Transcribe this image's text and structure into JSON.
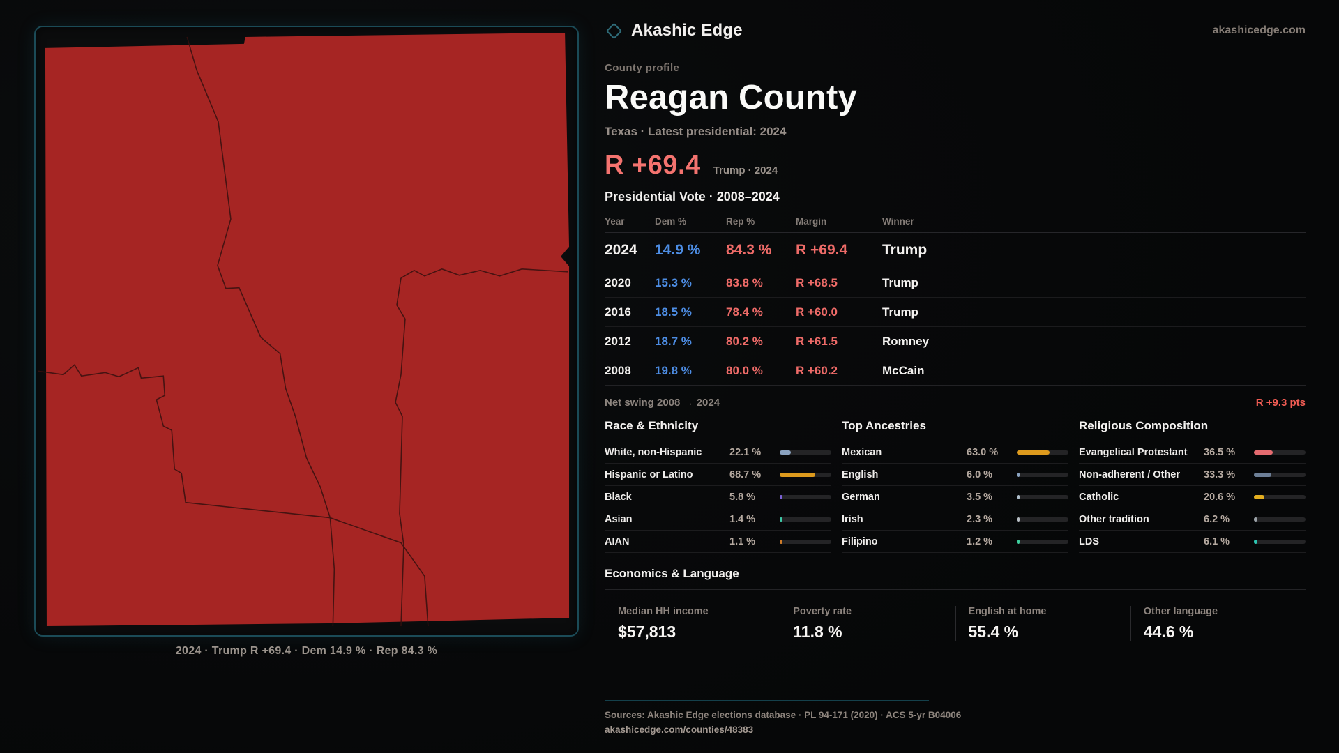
{
  "brand": {
    "name": "Akashic Edge",
    "domain": "akashicedge.com"
  },
  "header": {
    "eyebrow": "County profile",
    "title": "Reagan County",
    "subtitle": "Texas · Latest presidential: 2024",
    "headline_margin": "R +69.4",
    "headline_note": "Trump · 2024"
  },
  "table": {
    "title": "Presidential Vote · 2008–2024",
    "columns": [
      "Year",
      "Dem %",
      "Rep %",
      "Margin",
      "Winner"
    ],
    "rows": [
      {
        "year": "2024",
        "dem": "14.9 %",
        "rep": "84.3 %",
        "margin": "R +69.4",
        "winner": "Trump"
      },
      {
        "year": "2020",
        "dem": "15.3 %",
        "rep": "83.8 %",
        "margin": "R +68.5",
        "winner": "Trump"
      },
      {
        "year": "2016",
        "dem": "18.5 %",
        "rep": "78.4 %",
        "margin": "R +60.0",
        "winner": "Trump"
      },
      {
        "year": "2012",
        "dem": "18.7 %",
        "rep": "80.2 %",
        "margin": "R +61.5",
        "winner": "Romney"
      },
      {
        "year": "2008",
        "dem": "19.8 %",
        "rep": "80.0 %",
        "margin": "R +60.2",
        "winner": "McCain"
      }
    ]
  },
  "net_swing": {
    "label": "Net swing 2008 → 2024",
    "value": "R +9.3 pts"
  },
  "demographics": [
    {
      "title": "Race & Ethnicity",
      "rows": [
        {
          "label": "White, non-Hispanic",
          "value": "22.1 %",
          "pct": 22.1,
          "color": "#8aa2c0"
        },
        {
          "label": "Hispanic or Latino",
          "value": "68.7 %",
          "pct": 68.7,
          "color": "#dd9a1d"
        },
        {
          "label": "Black",
          "value": "5.8 %",
          "pct": 5.8,
          "color": "#7b61d6"
        },
        {
          "label": "Asian",
          "value": "1.4 %",
          "pct": 1.4,
          "color": "#3ec9a7"
        },
        {
          "label": "AIAN",
          "value": "1.1 %",
          "pct": 1.1,
          "color": "#cf7c28"
        }
      ]
    },
    {
      "title": "Top Ancestries",
      "rows": [
        {
          "label": "Mexican",
          "value": "63.0 %",
          "pct": 63.0,
          "color": "#dd9a1d"
        },
        {
          "label": "English",
          "value": "6.0 %",
          "pct": 6.0,
          "color": "#8aa2c0"
        },
        {
          "label": "German",
          "value": "3.5 %",
          "pct": 3.5,
          "color": "#aebecb"
        },
        {
          "label": "Irish",
          "value": "2.3 %",
          "pct": 2.3,
          "color": "#b9c0c6"
        },
        {
          "label": "Filipino",
          "value": "1.2 %",
          "pct": 1.2,
          "color": "#3ecf9e"
        }
      ]
    },
    {
      "title": "Religious Composition",
      "rows": [
        {
          "label": "Evangelical Protestant",
          "value": "36.5 %",
          "pct": 36.5,
          "color": "#e56b70"
        },
        {
          "label": "Non-adherent / Other",
          "value": "33.3 %",
          "pct": 33.3,
          "color": "#6d7f97"
        },
        {
          "label": "Catholic",
          "value": "20.6 %",
          "pct": 20.6,
          "color": "#e3ae1f"
        },
        {
          "label": "Other tradition",
          "value": "6.2 %",
          "pct": 6.2,
          "color": "#9aa1a7"
        },
        {
          "label": "LDS",
          "value": "6.1 %",
          "pct": 6.1,
          "color": "#2cc5b2"
        }
      ]
    }
  ],
  "economics": {
    "title": "Economics & Language",
    "stats": [
      {
        "label": "Median HH income",
        "value": "$57,813"
      },
      {
        "label": "Poverty rate",
        "value": "11.8 %"
      },
      {
        "label": "English at home",
        "value": "55.4 %"
      },
      {
        "label": "Other language",
        "value": "44.6 %"
      }
    ]
  },
  "map": {
    "caption": "2024 · Trump R +69.4 · Dem 14.9 % · Rep 84.3 %",
    "fill": "#a62523"
  },
  "footer": {
    "sources": "Sources: Akashic Edge elections database · PL 94-171 (2020) · ACS 5-yr B04006",
    "url": "akashicedge.com/counties/48383"
  },
  "colors": {
    "accent_teal": "#1b4b57",
    "dem_blue": "#4d8de4",
    "rep_red": "#ee6b68",
    "headline_red": "#f4736f",
    "map_red": "#a62523"
  }
}
